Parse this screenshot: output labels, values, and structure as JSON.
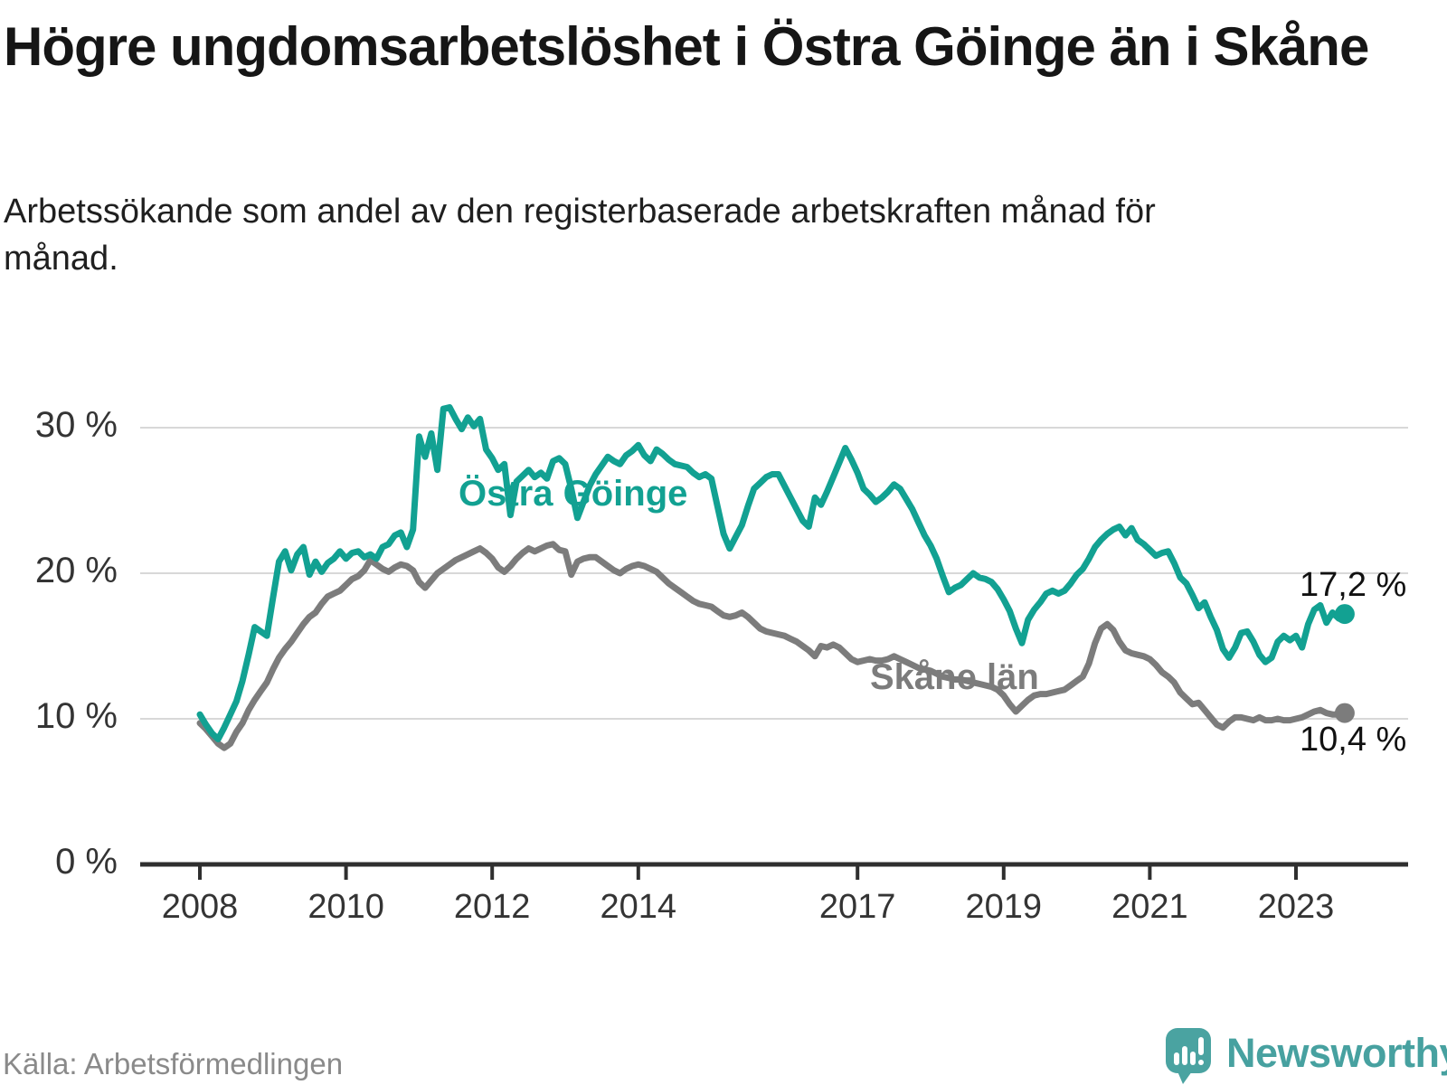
{
  "title": "Högre ungdomsarbetslöshet i Östra Göinge än i Skåne",
  "subtitle": "Arbetssökande som andel av den registerbaserade arbetskraften månad för månad.",
  "source": "Källa: Arbetsförmedlingen",
  "brand": {
    "name": "Newsworthy",
    "color": "#47a1a0"
  },
  "colors": {
    "accent_teal": "#12a192",
    "neutral_gray": "#7c7c7c",
    "gridline": "#d8d8d8",
    "axis": "#2f2f2f",
    "text_dark": "#161616",
    "text_muted": "#8a8a8a"
  },
  "chart_data": {
    "type": "line",
    "unit": "%",
    "frequency": "monthly",
    "x_start": "2008-01",
    "x_end": "2023-09",
    "grid": "horizontal",
    "ylim": [
      0,
      33
    ],
    "x_tick_years": [
      2008,
      2010,
      2012,
      2014,
      2017,
      2019,
      2021,
      2023
    ],
    "y_ticks": [
      {
        "value": 0,
        "label": "0 %"
      },
      {
        "value": 10,
        "label": "10 %"
      },
      {
        "value": 20,
        "label": "20 %"
      },
      {
        "value": 30,
        "label": "30 %"
      }
    ],
    "series": [
      {
        "name": "Östra Göinge",
        "color": "#12a192",
        "end_label": "17,2 %",
        "end_value": 17.2,
        "values": [
          10.3,
          9.6,
          9.0,
          8.6,
          9.4,
          10.3,
          11.2,
          12.6,
          14.4,
          16.3,
          16.0,
          15.7,
          18.3,
          20.8,
          21.5,
          20.2,
          21.3,
          21.8,
          19.9,
          20.8,
          20.1,
          20.7,
          21.0,
          21.5,
          21.0,
          21.4,
          21.5,
          21.1,
          21.3,
          21.0,
          21.8,
          22.0,
          22.6,
          22.8,
          21.8,
          23.0,
          29.4,
          28.0,
          29.6,
          27.1,
          31.3,
          31.4,
          30.6,
          29.9,
          30.7,
          30.1,
          30.6,
          28.5,
          27.9,
          27.1,
          27.5,
          24.0,
          26.3,
          26.7,
          27.1,
          26.6,
          26.9,
          26.5,
          27.7,
          27.9,
          27.5,
          25.8,
          23.8,
          24.9,
          26.0,
          26.8,
          27.4,
          28.0,
          27.7,
          27.5,
          28.1,
          28.4,
          28.8,
          28.1,
          27.7,
          28.5,
          28.2,
          27.8,
          27.5,
          27.4,
          27.3,
          26.9,
          26.6,
          26.8,
          26.5,
          24.6,
          22.7,
          21.7,
          22.5,
          23.3,
          24.6,
          25.8,
          26.2,
          26.6,
          26.8,
          26.8,
          26.0,
          25.2,
          24.4,
          23.6,
          23.2,
          25.2,
          24.7,
          25.6,
          26.6,
          27.6,
          28.6,
          27.8,
          26.9,
          25.8,
          25.4,
          24.9,
          25.2,
          25.6,
          26.1,
          25.8,
          25.1,
          24.4,
          23.5,
          22.6,
          21.9,
          21.0,
          19.8,
          18.7,
          19.0,
          19.2,
          19.6,
          20.0,
          19.7,
          19.6,
          19.4,
          18.9,
          18.2,
          17.4,
          16.2,
          15.2,
          16.8,
          17.5,
          18.0,
          18.6,
          18.8,
          18.6,
          18.8,
          19.3,
          19.9,
          20.3,
          21.0,
          21.8,
          22.3,
          22.7,
          23.0,
          23.2,
          22.6,
          23.1,
          22.3,
          22.0,
          21.6,
          21.2,
          21.4,
          21.5,
          20.7,
          19.7,
          19.3,
          18.5,
          17.6,
          18.0,
          17.0,
          16.1,
          14.8,
          14.2,
          14.9,
          15.9,
          16.0,
          15.3,
          14.4,
          13.9,
          14.2,
          15.3,
          15.7,
          15.4,
          15.7,
          14.9,
          16.5,
          17.5,
          17.8,
          16.6,
          17.3,
          16.9,
          17.2
        ]
      },
      {
        "name": "Skåne län",
        "color": "#7c7c7c",
        "end_label": "10,4 %",
        "end_value": 10.4,
        "values": [
          9.7,
          9.3,
          8.8,
          8.3,
          8.0,
          8.3,
          9.1,
          9.7,
          10.6,
          11.3,
          11.9,
          12.5,
          13.4,
          14.2,
          14.8,
          15.3,
          15.9,
          16.5,
          17.0,
          17.3,
          17.9,
          18.4,
          18.6,
          18.8,
          19.2,
          19.6,
          19.8,
          20.2,
          20.9,
          20.6,
          20.3,
          20.1,
          20.4,
          20.6,
          20.5,
          20.2,
          19.4,
          19.0,
          19.5,
          20.0,
          20.3,
          20.6,
          20.9,
          21.1,
          21.3,
          21.5,
          21.7,
          21.4,
          21.0,
          20.4,
          20.1,
          20.5,
          21.0,
          21.4,
          21.7,
          21.5,
          21.7,
          21.9,
          22.0,
          21.6,
          21.5,
          19.9,
          20.8,
          21.0,
          21.1,
          21.1,
          20.8,
          20.5,
          20.2,
          20.0,
          20.3,
          20.5,
          20.6,
          20.5,
          20.3,
          20.1,
          19.7,
          19.3,
          19.0,
          18.7,
          18.4,
          18.1,
          17.9,
          17.8,
          17.7,
          17.4,
          17.1,
          17.0,
          17.1,
          17.3,
          17.0,
          16.6,
          16.2,
          16.0,
          15.9,
          15.8,
          15.7,
          15.5,
          15.3,
          15.0,
          14.7,
          14.3,
          15.0,
          14.9,
          15.1,
          14.9,
          14.5,
          14.1,
          13.9,
          14.0,
          14.1,
          14.0,
          14.0,
          14.1,
          14.3,
          14.1,
          13.9,
          13.7,
          13.5,
          13.4,
          13.3,
          13.1,
          12.9,
          12.8,
          12.7,
          12.7,
          12.6,
          12.5,
          12.4,
          12.3,
          12.2,
          12.0,
          11.6,
          11.0,
          10.5,
          10.9,
          11.3,
          11.6,
          11.7,
          11.7,
          11.8,
          11.9,
          12.0,
          12.3,
          12.6,
          12.9,
          13.8,
          15.2,
          16.2,
          16.5,
          16.1,
          15.3,
          14.7,
          14.5,
          14.4,
          14.3,
          14.1,
          13.7,
          13.2,
          12.9,
          12.5,
          11.8,
          11.4,
          11.0,
          11.1,
          10.6,
          10.1,
          9.6,
          9.4,
          9.8,
          10.1,
          10.1,
          10.0,
          9.9,
          10.1,
          9.9,
          9.9,
          10.0,
          9.9,
          9.9,
          10.0,
          10.1,
          10.3,
          10.5,
          10.6,
          10.4,
          10.3,
          10.3,
          10.4
        ]
      }
    ]
  }
}
